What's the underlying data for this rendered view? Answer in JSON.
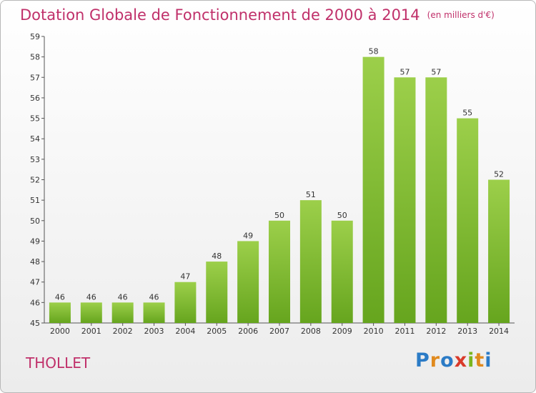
{
  "title": "Dotation Globale de Fonctionnement de 2000 à 2014",
  "subtitle": "(en milliers d'€)",
  "commune": "THOLLET",
  "logo": {
    "letters": [
      "P",
      "r",
      "o",
      "x",
      "i",
      "t",
      "i"
    ],
    "colors": [
      "#2b7bc6",
      "#e08a1e",
      "#2b7bc6",
      "#d93a2a",
      "#7ab51d",
      "#e08a1e",
      "#2b7bc6"
    ]
  },
  "chart_data": {
    "type": "bar",
    "categories": [
      "2000",
      "2001",
      "2002",
      "2003",
      "2004",
      "2005",
      "2006",
      "2007",
      "2008",
      "2009",
      "2010",
      "2011",
      "2012",
      "2013",
      "2014"
    ],
    "values": [
      46,
      46,
      46,
      46,
      47,
      48,
      49,
      50,
      51,
      50,
      58,
      57,
      57,
      55,
      52
    ],
    "ylim": [
      45,
      59
    ],
    "yticks": [
      45,
      46,
      47,
      48,
      49,
      50,
      51,
      52,
      53,
      54,
      55,
      56,
      57,
      58,
      59
    ],
    "grid": false,
    "bar_color_top": "#9ccf4a",
    "bar_color_bottom": "#66a51e"
  }
}
